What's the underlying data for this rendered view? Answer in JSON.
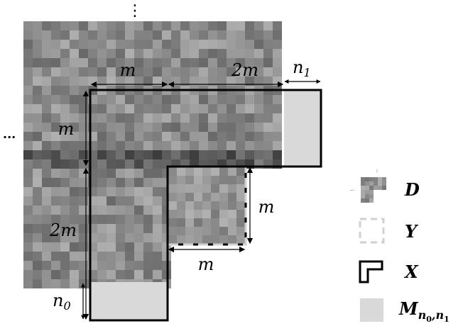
{
  "labels": {
    "m_top": "m",
    "twom_top": "2m",
    "n1_base": "n",
    "n1_sub": "1",
    "m_left": "m",
    "twom_left": "2m",
    "n0_base": "n",
    "n0_sub": "0",
    "m_right": "m",
    "m_bottom": "m",
    "ellipsis_top": "⋮",
    "ellipsis_left": "···"
  },
  "legend": {
    "D": "D",
    "Y": "Y",
    "X": "X",
    "M_base": "M",
    "M_sub": "n",
    "M_sub0": "0",
    "M_sub_sep": ",",
    "M_sub1": "1",
    "M_sub_n2": "n"
  },
  "colors": {
    "mask_gray": "#d9d9d9",
    "outline": "#000000",
    "dashed_gray": "#d0d0d0"
  }
}
